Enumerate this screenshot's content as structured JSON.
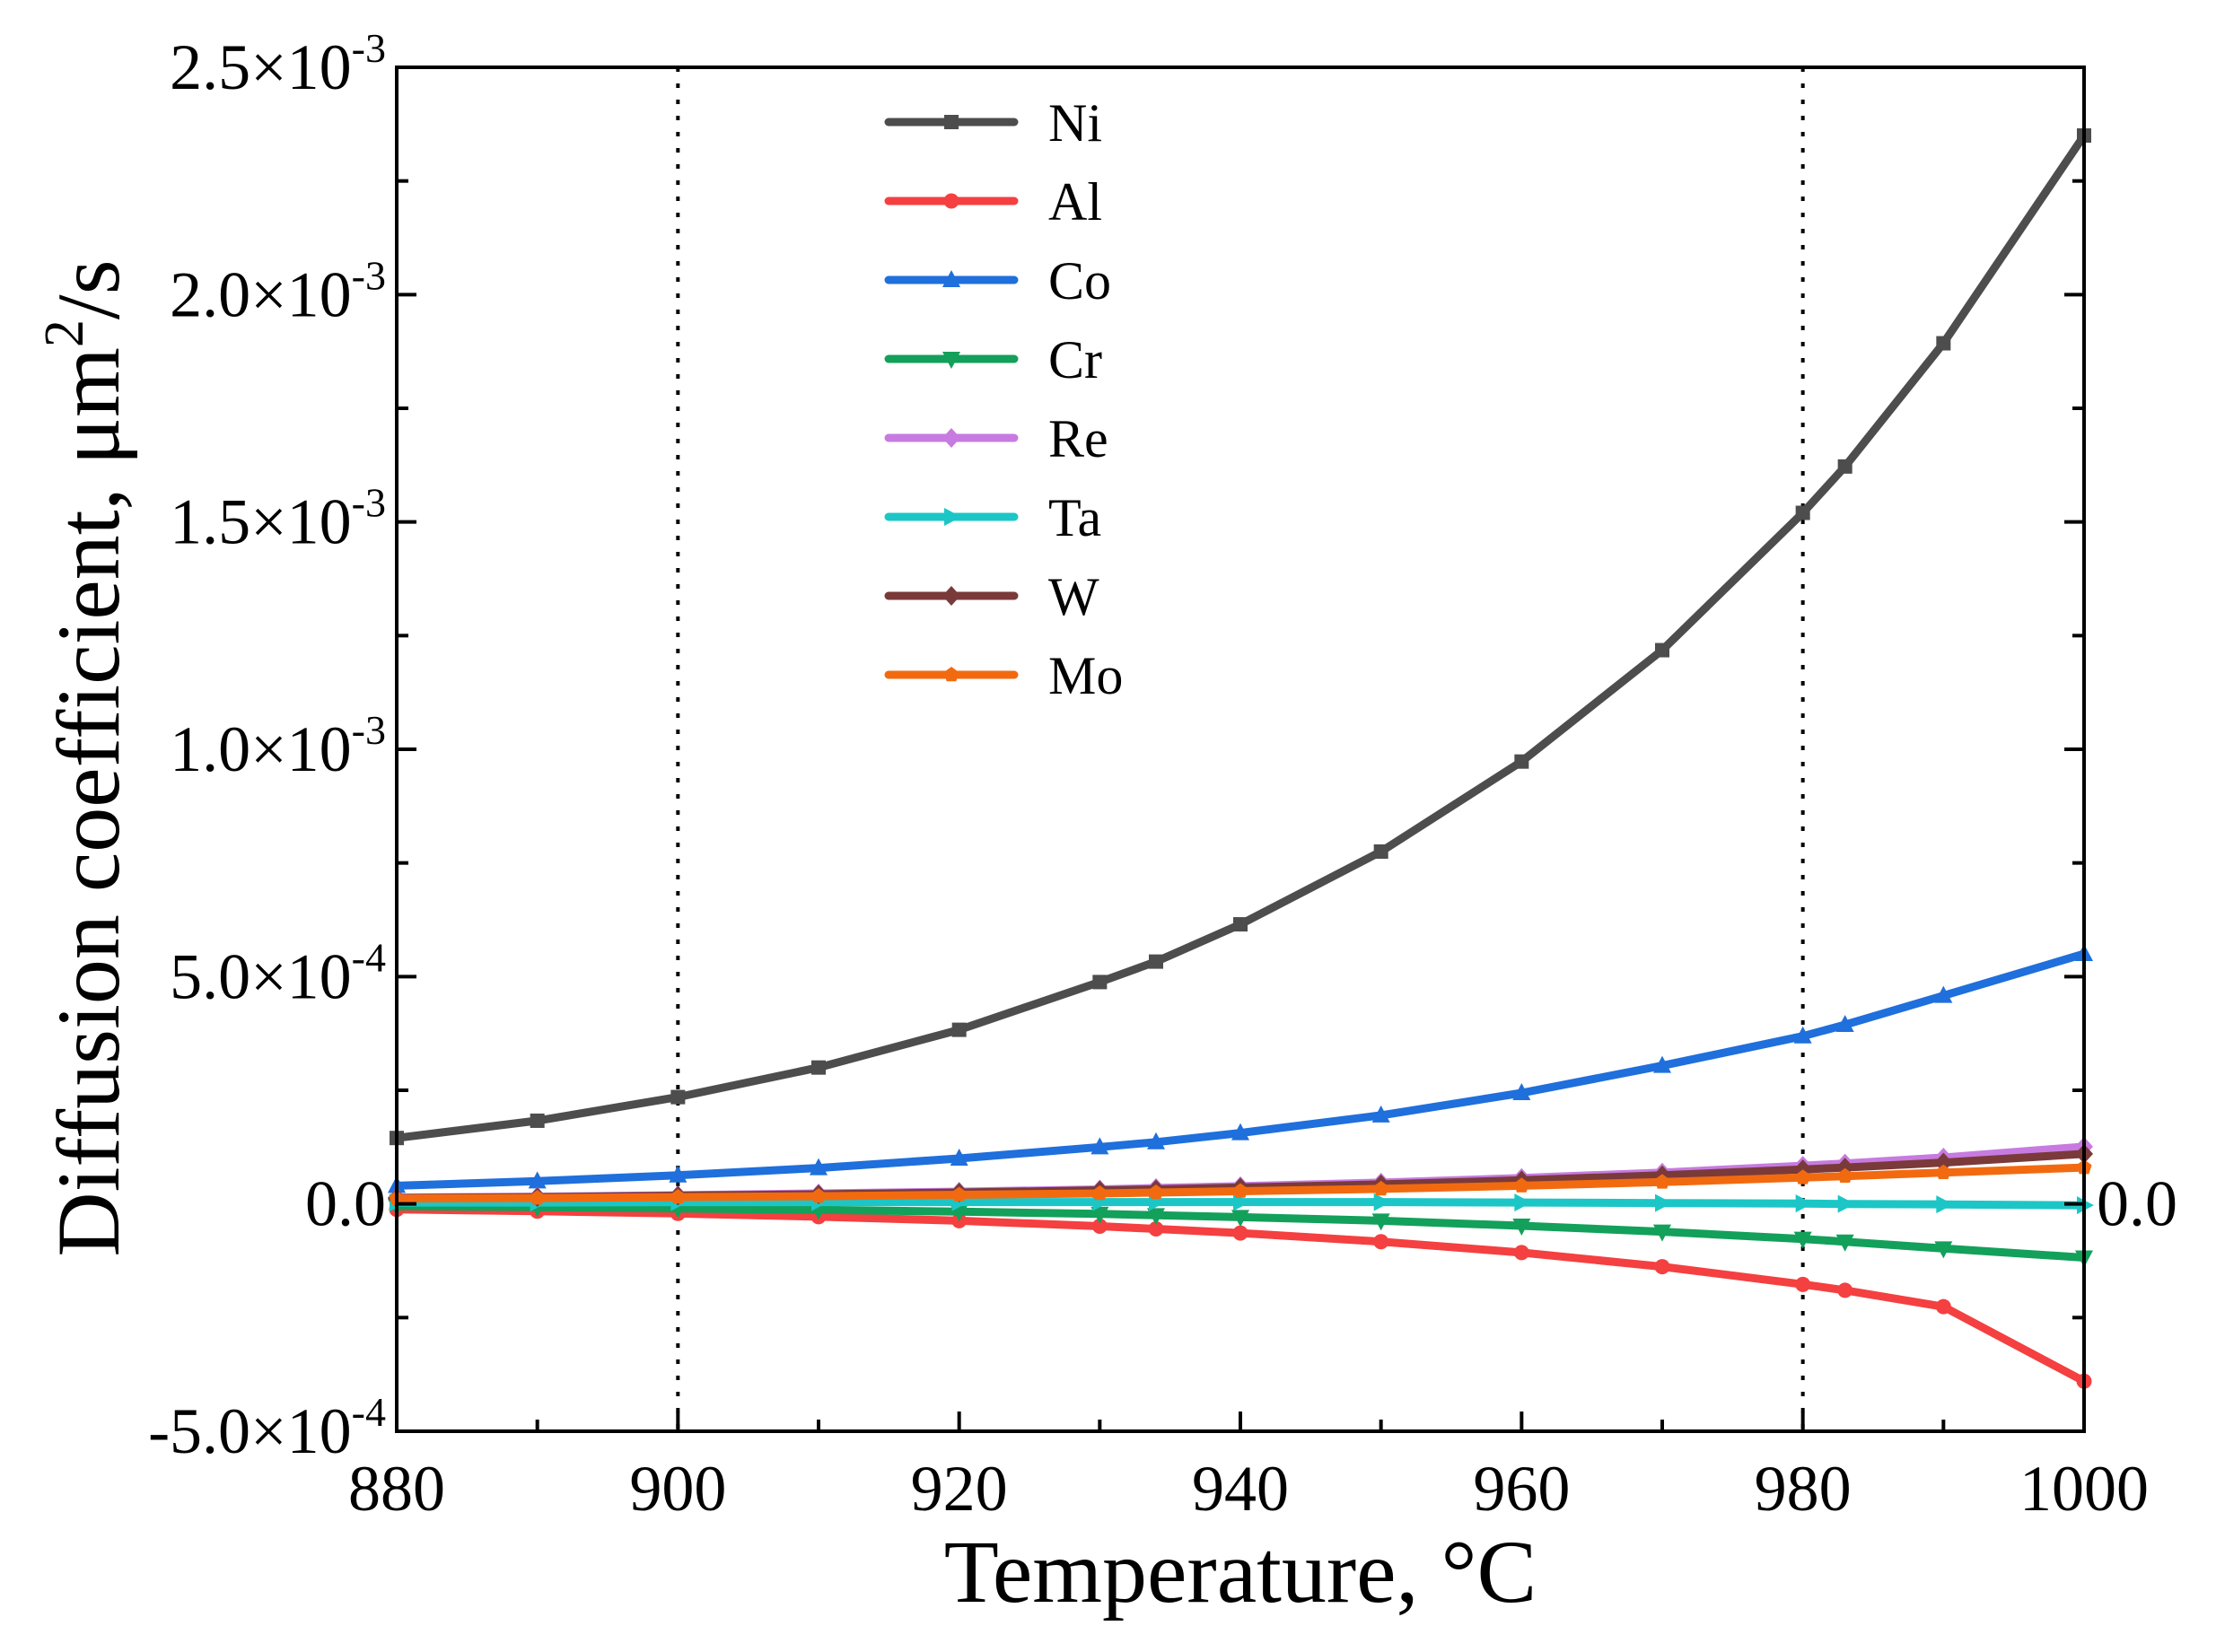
{
  "chart_data": {
    "type": "line",
    "title": "",
    "xlabel": "Temperature, °C",
    "ylabel_main": "Diffusion coefficient, μm",
    "ylabel_sup": "2",
    "ylabel_tail": "/s",
    "xlim": [
      880,
      1000
    ],
    "ylim": [
      -0.0005,
      0.0025
    ],
    "x_ticks": [
      {
        "value": 880,
        "label": "880"
      },
      {
        "value": 900,
        "label": "900"
      },
      {
        "value": 920,
        "label": "920"
      },
      {
        "value": 940,
        "label": "940"
      },
      {
        "value": 960,
        "label": "960"
      },
      {
        "value": 980,
        "label": "980"
      },
      {
        "value": 1000,
        "label": "1000"
      }
    ],
    "y_ticks": [
      {
        "value": 0.0025,
        "mant": "2.5×10",
        "exp": "-3"
      },
      {
        "value": 0.002,
        "mant": "2.0×10",
        "exp": "-3"
      },
      {
        "value": 0.0015,
        "mant": "1.5×10",
        "exp": "-3"
      },
      {
        "value": 0.001,
        "mant": "1.0×10",
        "exp": "-3"
      },
      {
        "value": 0.0005,
        "mant": "5.0×10",
        "exp": "-4"
      },
      {
        "value": 0.0,
        "mant": "0.0",
        "exp": ""
      },
      {
        "value": -0.0005,
        "mant": "-5.0×10",
        "exp": "-4"
      }
    ],
    "right_label": {
      "value": 0.0,
      "text": "0.0"
    },
    "reference_lines_x": [
      900,
      980
    ],
    "legend_position": "top-center",
    "x": [
      880,
      890,
      900,
      910,
      920,
      930,
      934,
      940,
      950,
      960,
      970,
      980,
      983,
      990,
      1000
    ],
    "series": [
      {
        "name": "Ni",
        "color": "#4d4d4d",
        "marker": "square",
        "values": [
          0.000145,
          0.000183,
          0.000235,
          0.0003,
          0.000383,
          0.000488,
          0.000533,
          0.000615,
          0.000775,
          0.000973,
          0.001218,
          0.00152,
          0.001622,
          0.001893,
          0.00235
        ]
      },
      {
        "name": "Al",
        "color": "#f44040",
        "marker": "circle",
        "values": [
          -1.2e-05,
          -1.6e-05,
          -2.1e-05,
          -2.8e-05,
          -3.7e-05,
          -4.9e-05,
          -5.5e-05,
          -6.4e-05,
          -8.3e-05,
          -0.000107,
          -0.000138,
          -0.000177,
          -0.00019,
          -0.000226,
          -0.00039
        ]
      },
      {
        "name": "Co",
        "color": "#1f6fdc",
        "marker": "triangle-up",
        "values": [
          4e-05,
          5e-05,
          6.3e-05,
          7.9e-05,
          0.0001,
          0.000125,
          0.000136,
          0.000156,
          0.000195,
          0.000244,
          0.000304,
          0.000369,
          0.000394,
          0.000458,
          0.00055
        ]
      },
      {
        "name": "Cr",
        "color": "#13a05a",
        "marker": "triangle-down",
        "values": [
          -5e-06,
          -7e-06,
          -1e-05,
          -1.3e-05,
          -1.7e-05,
          -2.2e-05,
          -2.5e-05,
          -2.9e-05,
          -3.7e-05,
          -4.8e-05,
          -6.1e-05,
          -7.7e-05,
          -8.3e-05,
          -9.8e-05,
          -0.000118
        ]
      },
      {
        "name": "Re",
        "color": "#c77be0",
        "marker": "diamond",
        "values": [
          1.4e-05,
          1.6e-05,
          1.9e-05,
          2.3e-05,
          2.7e-05,
          3.2e-05,
          3.5e-05,
          3.9e-05,
          4.7e-05,
          5.7e-05,
          6.9e-05,
          8.4e-05,
          8.9e-05,
          0.000102,
          0.000126
        ]
      },
      {
        "name": "Ta",
        "color": "#1cc6c6",
        "marker": "triangle-right",
        "values": [
          3e-06,
          3e-06,
          4e-06,
          4e-06,
          4e-06,
          4e-06,
          4e-06,
          4e-06,
          4e-06,
          3e-06,
          2e-06,
          1e-06,
          0.0,
          -1e-06,
          -3e-06
        ]
      },
      {
        "name": "W",
        "color": "#7a3a3a",
        "marker": "diamond",
        "values": [
          1.3e-05,
          1.5e-05,
          1.8e-05,
          2.1e-05,
          2.5e-05,
          3e-05,
          3.2e-05,
          3.6e-05,
          4.3e-05,
          5.2e-05,
          6.3e-05,
          7.6e-05,
          8e-05,
          9.1e-05,
          0.00011
        ]
      },
      {
        "name": "Mo",
        "color": "#f26a10",
        "marker": "pentagon",
        "values": [
          1.2e-05,
          1.3e-05,
          1.5e-05,
          1.7e-05,
          2e-05,
          2.3e-05,
          2.5e-05,
          2.8e-05,
          3.3e-05,
          4e-05,
          4.8e-05,
          5.8e-05,
          6.1e-05,
          6.9e-05,
          8e-05
        ]
      }
    ]
  }
}
